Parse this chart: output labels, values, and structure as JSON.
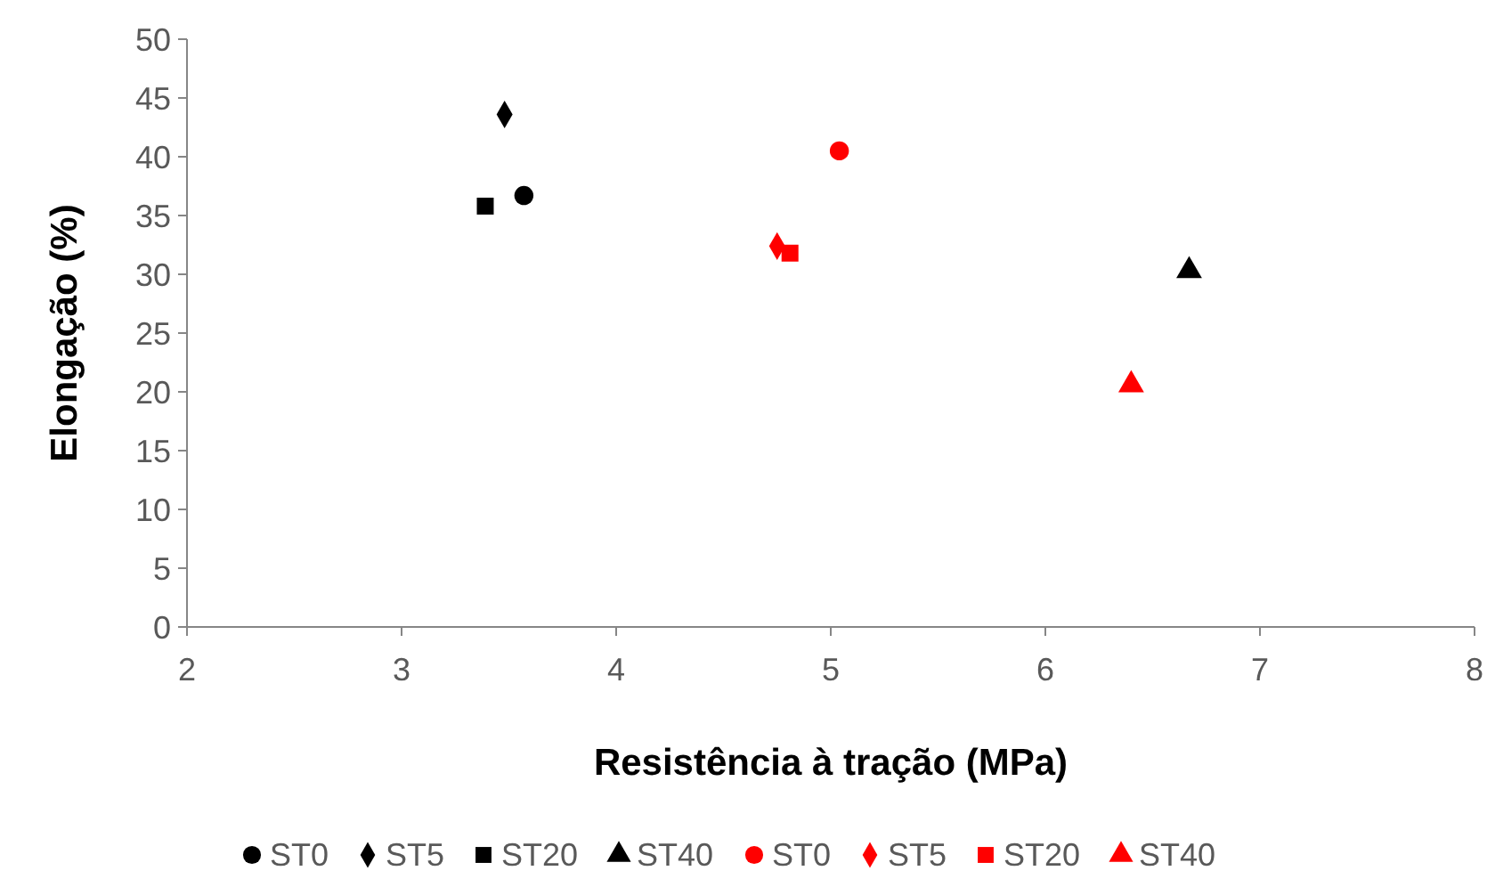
{
  "chart_data": {
    "type": "scatter",
    "xlabel": "Resistência à tração (MPa)",
    "ylabel": "Elongação (%)",
    "xlim": [
      2,
      8
    ],
    "xticks": [
      2,
      3,
      4,
      5,
      6,
      7,
      8
    ],
    "ylim": [
      0,
      50
    ],
    "yticks": [
      0,
      5,
      10,
      15,
      20,
      25,
      30,
      35,
      40,
      45,
      50
    ],
    "grid": false,
    "legend": "bottom",
    "series": [
      {
        "name": "ST0",
        "color": "#000000",
        "marker": "circle",
        "x": [
          3.57
        ],
        "values": [
          36.7
        ]
      },
      {
        "name": "ST5",
        "color": "#000000",
        "marker": "diamond",
        "x": [
          3.48
        ],
        "values": [
          43.6
        ]
      },
      {
        "name": "ST20",
        "color": "#000000",
        "marker": "square",
        "x": [
          3.39
        ],
        "values": [
          35.8
        ]
      },
      {
        "name": "ST40",
        "color": "#000000",
        "marker": "triangle",
        "x": [
          6.67
        ],
        "values": [
          30.3
        ]
      },
      {
        "name": "ST0",
        "color": "#ff0000",
        "marker": "circle",
        "x": [
          5.04
        ],
        "values": [
          40.5
        ]
      },
      {
        "name": "ST5",
        "color": "#ff0000",
        "marker": "diamond",
        "x": [
          4.75
        ],
        "values": [
          32.4
        ]
      },
      {
        "name": "ST20",
        "color": "#ff0000",
        "marker": "square",
        "x": [
          4.81
        ],
        "values": [
          31.8
        ]
      },
      {
        "name": "ST40",
        "color": "#ff0000",
        "marker": "triangle",
        "x": [
          6.4
        ],
        "values": [
          20.6
        ]
      }
    ]
  }
}
